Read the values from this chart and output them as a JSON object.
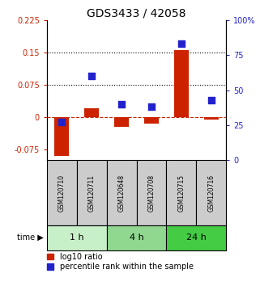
{
  "title": "GDS3433 / 42058",
  "categories": [
    "GSM120710",
    "GSM120711",
    "GSM120648",
    "GSM120708",
    "GSM120715",
    "GSM120716"
  ],
  "log10_ratio": [
    -0.09,
    0.02,
    -0.022,
    -0.015,
    0.155,
    -0.005
  ],
  "percentile_rank": [
    27,
    60,
    40,
    38,
    83,
    43
  ],
  "time_groups": [
    {
      "label": "1 h",
      "start": 0,
      "end": 2,
      "color": "#c8f0c8"
    },
    {
      "label": "4 h",
      "start": 2,
      "end": 4,
      "color": "#90d890"
    },
    {
      "label": "24 h",
      "start": 4,
      "end": 6,
      "color": "#44cc44"
    }
  ],
  "bar_color": "#cc2200",
  "dot_color": "#2222cc",
  "ylim_left": [
    -0.1,
    0.225
  ],
  "ylim_right": [
    0,
    100
  ],
  "yticks_left": [
    -0.075,
    0,
    0.075,
    0.15,
    0.225
  ],
  "yticks_right": [
    0,
    25,
    50,
    75,
    100
  ],
  "hlines": [
    0.075,
    0.15
  ],
  "zero_line": 0.0,
  "bar_width": 0.5,
  "dot_size": 28,
  "legend_entries": [
    "log10 ratio",
    "percentile rank within the sample"
  ],
  "background_color": "#ffffff",
  "sample_box_color": "#cccccc",
  "title_fontsize": 10,
  "tick_fontsize": 7,
  "label_fontsize": 6,
  "legend_fontsize": 7,
  "time_fontsize": 8,
  "sample_fontsize": 5.5
}
